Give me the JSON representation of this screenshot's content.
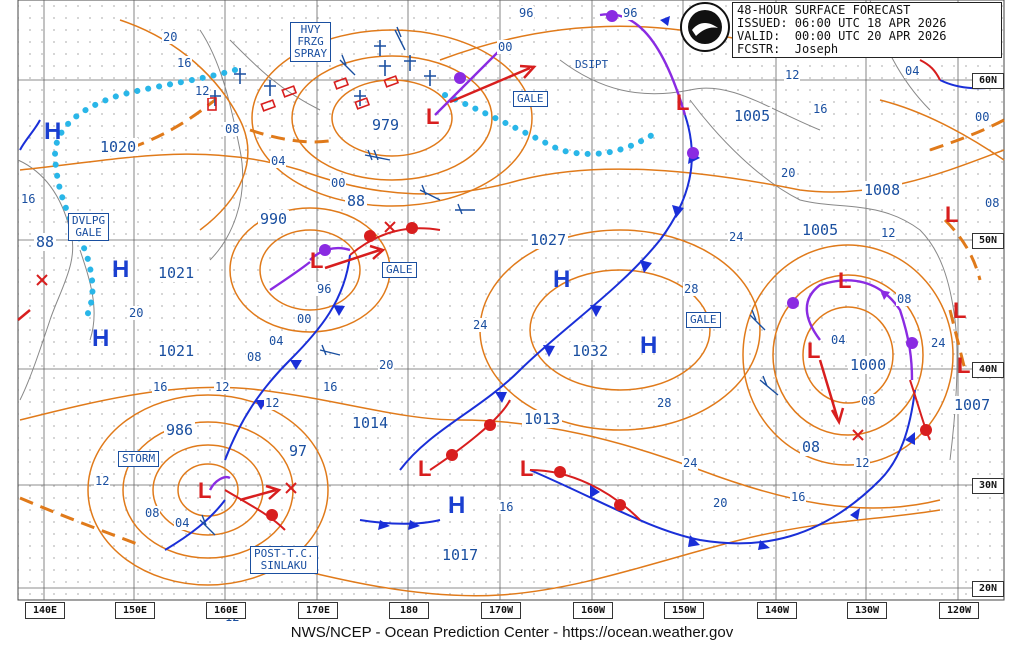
{
  "header": {
    "title": "48-HOUR SURFACE FORECAST",
    "issued": "ISSUED: 06:00 UTC 18 APR 2026",
    "valid": "VALID:  00:00 UTC 20 APR 2026",
    "forecaster": "FCSTR:  Joseph"
  },
  "footer": "NWS/NCEP - Ocean Prediction Center - https://ocean.weather.gov",
  "colors": {
    "isobar": "#e07a1a",
    "cold_front": "#1a2fd8",
    "warm_front": "#d81e1e",
    "occluded": "#8a2be2",
    "ice": "#29b6e8",
    "text": "#1a4fa0"
  },
  "longitude_labels": [
    "140E",
    "150E",
    "160E",
    "170E",
    "180",
    "170W",
    "160W",
    "150W",
    "140W",
    "130W",
    "120W"
  ],
  "latitude_labels": [
    "60N",
    "50N",
    "40N",
    "30N",
    "20N"
  ],
  "warning_labels": {
    "hvy_frzg_spray": "HVY\nFRZG\nSPRAY",
    "dsipt": "DSIPT",
    "gale_nw": "GALE",
    "dvlpg_gale": "DVLPG\nGALE",
    "gale_center": "GALE",
    "gale_east": "GALE",
    "storm": "STORM",
    "post_tc": "POST-T.C.\nSINLAKU"
  },
  "pressure_centers": {
    "low_979": "979",
    "low_990": "990",
    "low_88": "88",
    "low_88_w": "88",
    "low_986": "986",
    "low_97": "97",
    "high_1020": "1020",
    "high_1021_a": "1021",
    "high_1021_b": "1021",
    "high_1027": "1027",
    "high_1032": "1032",
    "low_1005_a": "1005",
    "high_1008": "1008",
    "low_1005_b": "1005",
    "low_1000": "1000",
    "high_1007": "1007",
    "low_1014": "1014",
    "low_1013": "1013",
    "high_1017": "1017",
    "low_08": "08"
  },
  "symbols": {
    "high": "H",
    "low": "L"
  },
  "isobar_labels": [
    "20",
    "16",
    "12",
    "08",
    "04",
    "00",
    "96",
    "00",
    "96",
    "12",
    "16",
    "20",
    "04",
    "00",
    "08",
    "12",
    "24",
    "28",
    "24",
    "20",
    "16",
    "12",
    "08",
    "04",
    "12",
    "16",
    "24",
    "28",
    "24",
    "20",
    "16",
    "12",
    "08",
    "04",
    "12",
    "16",
    "08",
    "96",
    "12",
    "00",
    "04",
    "08",
    "16",
    "20",
    "24"
  ]
}
